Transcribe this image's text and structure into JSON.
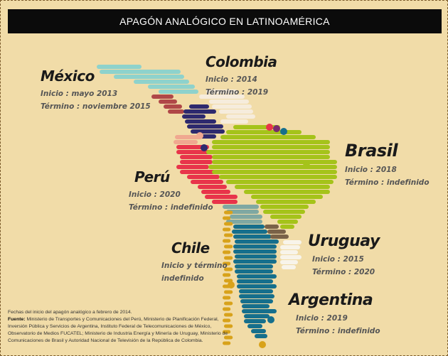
{
  "header": {
    "title": "APAGÓN ANALÓGICO EN LATINOAMÉRICA"
  },
  "countries": [
    {
      "name": "México",
      "lines": [
        "Inicio : mayo 2013",
        "Término : noviembre 2015"
      ]
    },
    {
      "name": "Colombia",
      "lines": [
        "Inicio : 2014",
        "Término : 2019"
      ]
    },
    {
      "name": "Brasil",
      "lines": [
        "Inicio : 2018",
        "Término : indefinido"
      ]
    },
    {
      "name": "Perú",
      "lines": [
        "Inicio : 2020",
        "Término : indefinido"
      ]
    },
    {
      "name": "Chile",
      "lines": [
        "Inicio y término",
        "indefinido"
      ]
    },
    {
      "name": "Uruguay",
      "lines": [
        "Inicio : 2015",
        "Término : 2020"
      ]
    },
    {
      "name": "Argentina",
      "lines": [
        "Inicio : 2019",
        "Término : indefinido"
      ]
    }
  ],
  "footer": {
    "note": "Fechas del inicio del apagón analógico a febrero de 2014.",
    "source_label": "Fuente:",
    "source": "Ministerio de Transportes y Comunicaciones del Perú, Ministerio de Planificación Federal, Inversión Pública y Servicios de Argentina, Instituto Federal de Telecomunicaciones de México, Observatorio de Medios FUCATEL; Ministerio de Industria Energía y Minería de Uruguay, Ministerio de Comunicaciones de Brasil y Autoridad Nacional de Televisión de la República de Colombia."
  }
}
